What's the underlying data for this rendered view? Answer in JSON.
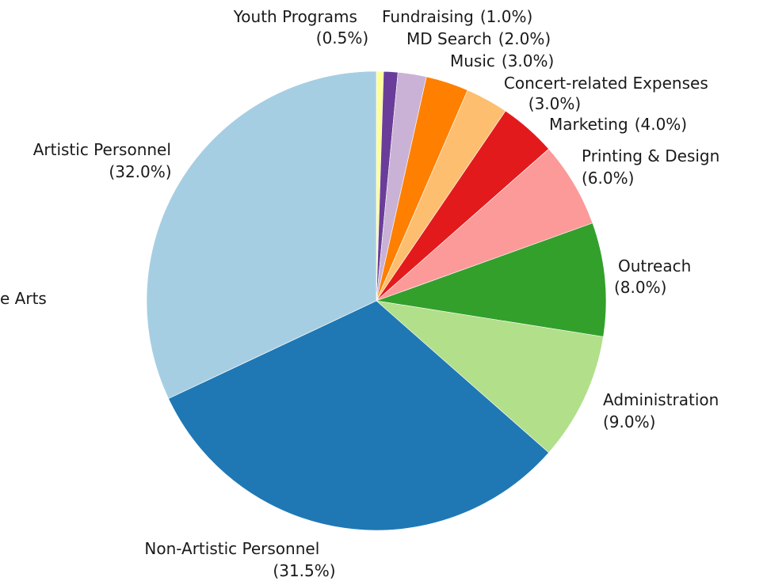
{
  "chart_data": {
    "type": "pie",
    "title": "",
    "slices": [
      {
        "label": "Youth Programs",
        "value": 0.5,
        "pct_text": "(0.5%)",
        "color": "#ffff99"
      },
      {
        "label": "Fundraising",
        "value": 1.0,
        "pct_text": "(1.0%)",
        "color": "#6a3d9a"
      },
      {
        "label": "MD Search",
        "value": 2.0,
        "pct_text": "(2.0%)",
        "color": "#cab2d6"
      },
      {
        "label": "Music",
        "value": 3.0,
        "pct_text": "(3.0%)",
        "color": "#ff7f00"
      },
      {
        "label": "Concert-related Expenses",
        "value": 3.0,
        "pct_text": "(3.0%)",
        "color": "#fdbf6f"
      },
      {
        "label": "Marketing",
        "value": 4.0,
        "pct_text": "(4.0%)",
        "color": "#e31a1c"
      },
      {
        "label": "Printing & Design",
        "value": 6.0,
        "pct_text": "(6.0%)",
        "color": "#fb9a99"
      },
      {
        "label": "Outreach",
        "value": 8.0,
        "pct_text": "(8.0%)",
        "color": "#33a02c"
      },
      {
        "label": "Administration",
        "value": 9.0,
        "pct_text": "(9.0%)",
        "color": "#b2df8a"
      },
      {
        "label": "Non-Artistic Personnel",
        "value": 31.5,
        "pct_text": "(31.5%)",
        "color": "#1f78b4"
      },
      {
        "label": "Artistic Personnel",
        "value": 32.0,
        "pct_text": "(32.0%)",
        "color": "#a6cee3"
      }
    ],
    "partial_label": "e Arts",
    "start_angle_deg": 90,
    "direction": "clockwise"
  }
}
